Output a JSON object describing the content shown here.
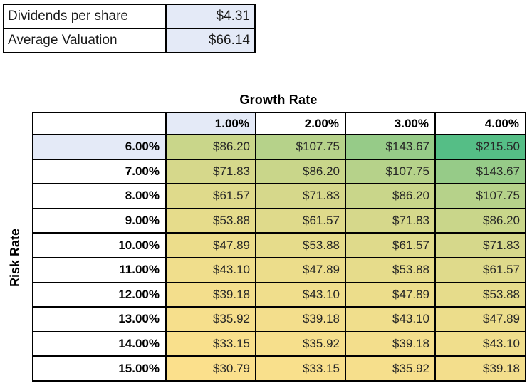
{
  "info_table": {
    "rows": [
      {
        "label": "Dividends per share",
        "value": "$4.31"
      },
      {
        "label": "Average Valuation",
        "value": "$66.14"
      }
    ]
  },
  "sensitivity": {
    "title": "Growth Rate",
    "row_axis_label": "Risk Rate",
    "value_prefix": "$",
    "col_headers": [
      "1.00%",
      "2.00%",
      "3.00%",
      "4.00%"
    ],
    "highlight_col_index": 0,
    "rows": [
      {
        "label": "6.00%",
        "highlight": true,
        "values": [
          86.2,
          107.75,
          143.67,
          215.5
        ]
      },
      {
        "label": "7.00%",
        "highlight": false,
        "values": [
          71.83,
          86.2,
          107.75,
          143.67
        ]
      },
      {
        "label": "8.00%",
        "highlight": false,
        "values": [
          61.57,
          71.83,
          86.2,
          107.75
        ]
      },
      {
        "label": "9.00%",
        "highlight": false,
        "values": [
          53.88,
          61.57,
          71.83,
          86.2
        ]
      },
      {
        "label": "10.00%",
        "highlight": false,
        "values": [
          47.89,
          53.88,
          61.57,
          71.83
        ]
      },
      {
        "label": "11.00%",
        "highlight": false,
        "values": [
          43.1,
          47.89,
          53.88,
          61.57
        ]
      },
      {
        "label": "12.00%",
        "highlight": false,
        "values": [
          39.18,
          43.1,
          47.89,
          53.88
        ]
      },
      {
        "label": "13.00%",
        "highlight": false,
        "values": [
          35.92,
          39.18,
          43.1,
          47.89
        ]
      },
      {
        "label": "14.00%",
        "highlight": false,
        "values": [
          33.15,
          35.92,
          39.18,
          43.1
        ]
      },
      {
        "label": "15.00%",
        "highlight": false,
        "values": [
          30.79,
          33.15,
          35.92,
          39.18
        ]
      }
    ],
    "color_scale": {
      "min_value": 30.79,
      "max_value": 215.5,
      "min_color": "#fbe08c",
      "max_color": "#55be86"
    }
  },
  "colors": {
    "highlight_blue": "#e4eaf7",
    "border": "#000000",
    "cell_text": "#262626"
  }
}
